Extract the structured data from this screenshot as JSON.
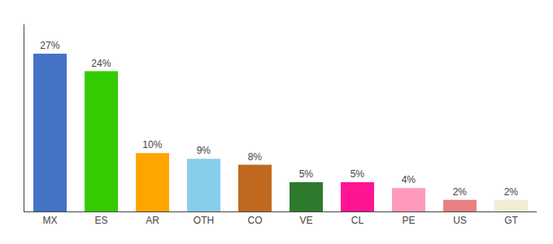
{
  "chart_data": {
    "type": "bar",
    "categories": [
      "MX",
      "ES",
      "AR",
      "OTH",
      "CO",
      "VE",
      "CL",
      "PE",
      "US",
      "GT"
    ],
    "values": [
      27,
      24,
      10,
      9,
      8,
      5,
      5,
      4,
      2,
      2
    ],
    "value_labels": [
      "27%",
      "24%",
      "10%",
      "9%",
      "8%",
      "5%",
      "5%",
      "4%",
      "2%",
      "2%"
    ],
    "data_labels": true,
    "colors": [
      "#4472C4",
      "#33CC00",
      "#FFA500",
      "#87CEEB",
      "#C06820",
      "#2D7A2D",
      "#FF1493",
      "#FF99BB",
      "#E88080",
      "#F0EDD4"
    ],
    "ylim": [
      0,
      32
    ],
    "grid": false,
    "tick_labels": "x"
  }
}
